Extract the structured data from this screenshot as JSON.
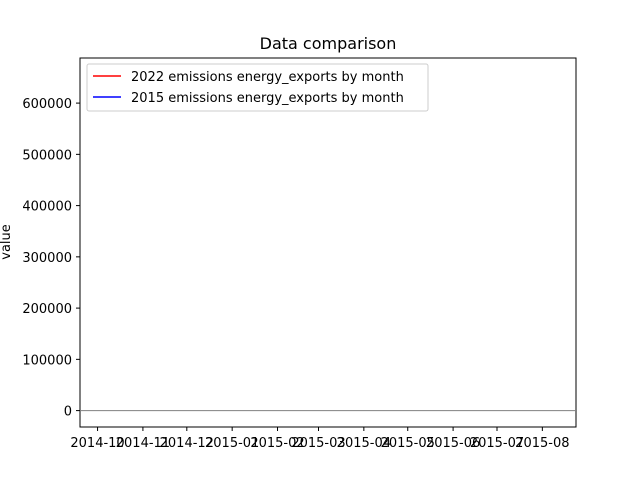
{
  "chart_data": {
    "type": "line",
    "title": "Data comparison",
    "xlabel": "",
    "ylabel": "value",
    "x_ticks": [
      "2014-10",
      "2014-11",
      "2014-12",
      "2015-01",
      "2015-02",
      "2015-03",
      "2015-04",
      "2015-05",
      "2015-06",
      "2015-07",
      "2015-08"
    ],
    "y_ticks": [
      0,
      100000,
      200000,
      300000,
      400000,
      500000,
      600000
    ],
    "ylim": [
      -32000,
      688000
    ],
    "xlim": [
      "2014-09-19",
      "2015-08-24"
    ],
    "grid": false,
    "legend_position": "top-left",
    "zero_line": true,
    "series": [
      {
        "name": "2022 emissions energy_exports by month",
        "color": "#ff0000",
        "values": []
      },
      {
        "name": "2015 emissions energy_exports by month",
        "color": "#0000ff",
        "values": []
      }
    ]
  },
  "colors": {
    "zero_line": "#808080",
    "axes": "#000000",
    "background": "#ffffff"
  }
}
